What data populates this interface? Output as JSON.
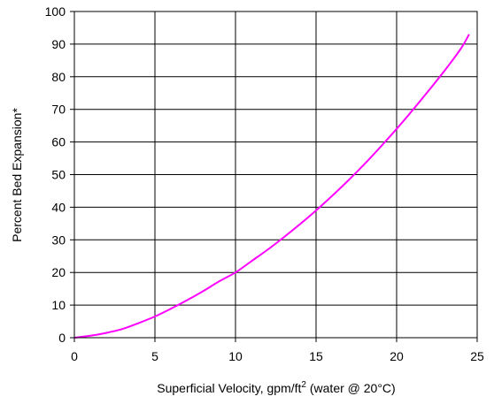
{
  "chart_data": {
    "type": "line",
    "title": "",
    "xlabel_main": "Superficial Velocity, gpm/ft",
    "xlabel_sup": "2",
    "xlabel_tail": " (water @ 20°C)",
    "ylabel": "Percent Bed Expansion*",
    "xlim": [
      0,
      25
    ],
    "ylim": [
      0,
      100
    ],
    "xticks": [
      0,
      5,
      10,
      15,
      20,
      25
    ],
    "yticks": [
      0,
      10,
      20,
      30,
      40,
      50,
      60,
      70,
      80,
      90,
      100
    ],
    "grid": true,
    "legend": "none",
    "series": [
      {
        "color": "#ff00ff",
        "x": [
          0,
          1,
          2,
          3,
          4,
          5,
          6,
          7,
          8,
          9,
          10,
          11,
          12,
          13,
          14,
          15,
          16,
          17,
          18,
          19,
          20,
          21,
          22,
          23,
          24,
          24.5
        ],
        "y": [
          0,
          0.6,
          1.5,
          2.7,
          4.5,
          6.5,
          8.9,
          11.5,
          14.3,
          17.3,
          20,
          23.5,
          27,
          30.8,
          34.8,
          39,
          43.5,
          48.2,
          53.2,
          58.5,
          64,
          69.8,
          75.8,
          82,
          88.7,
          93
        ]
      }
    ]
  }
}
